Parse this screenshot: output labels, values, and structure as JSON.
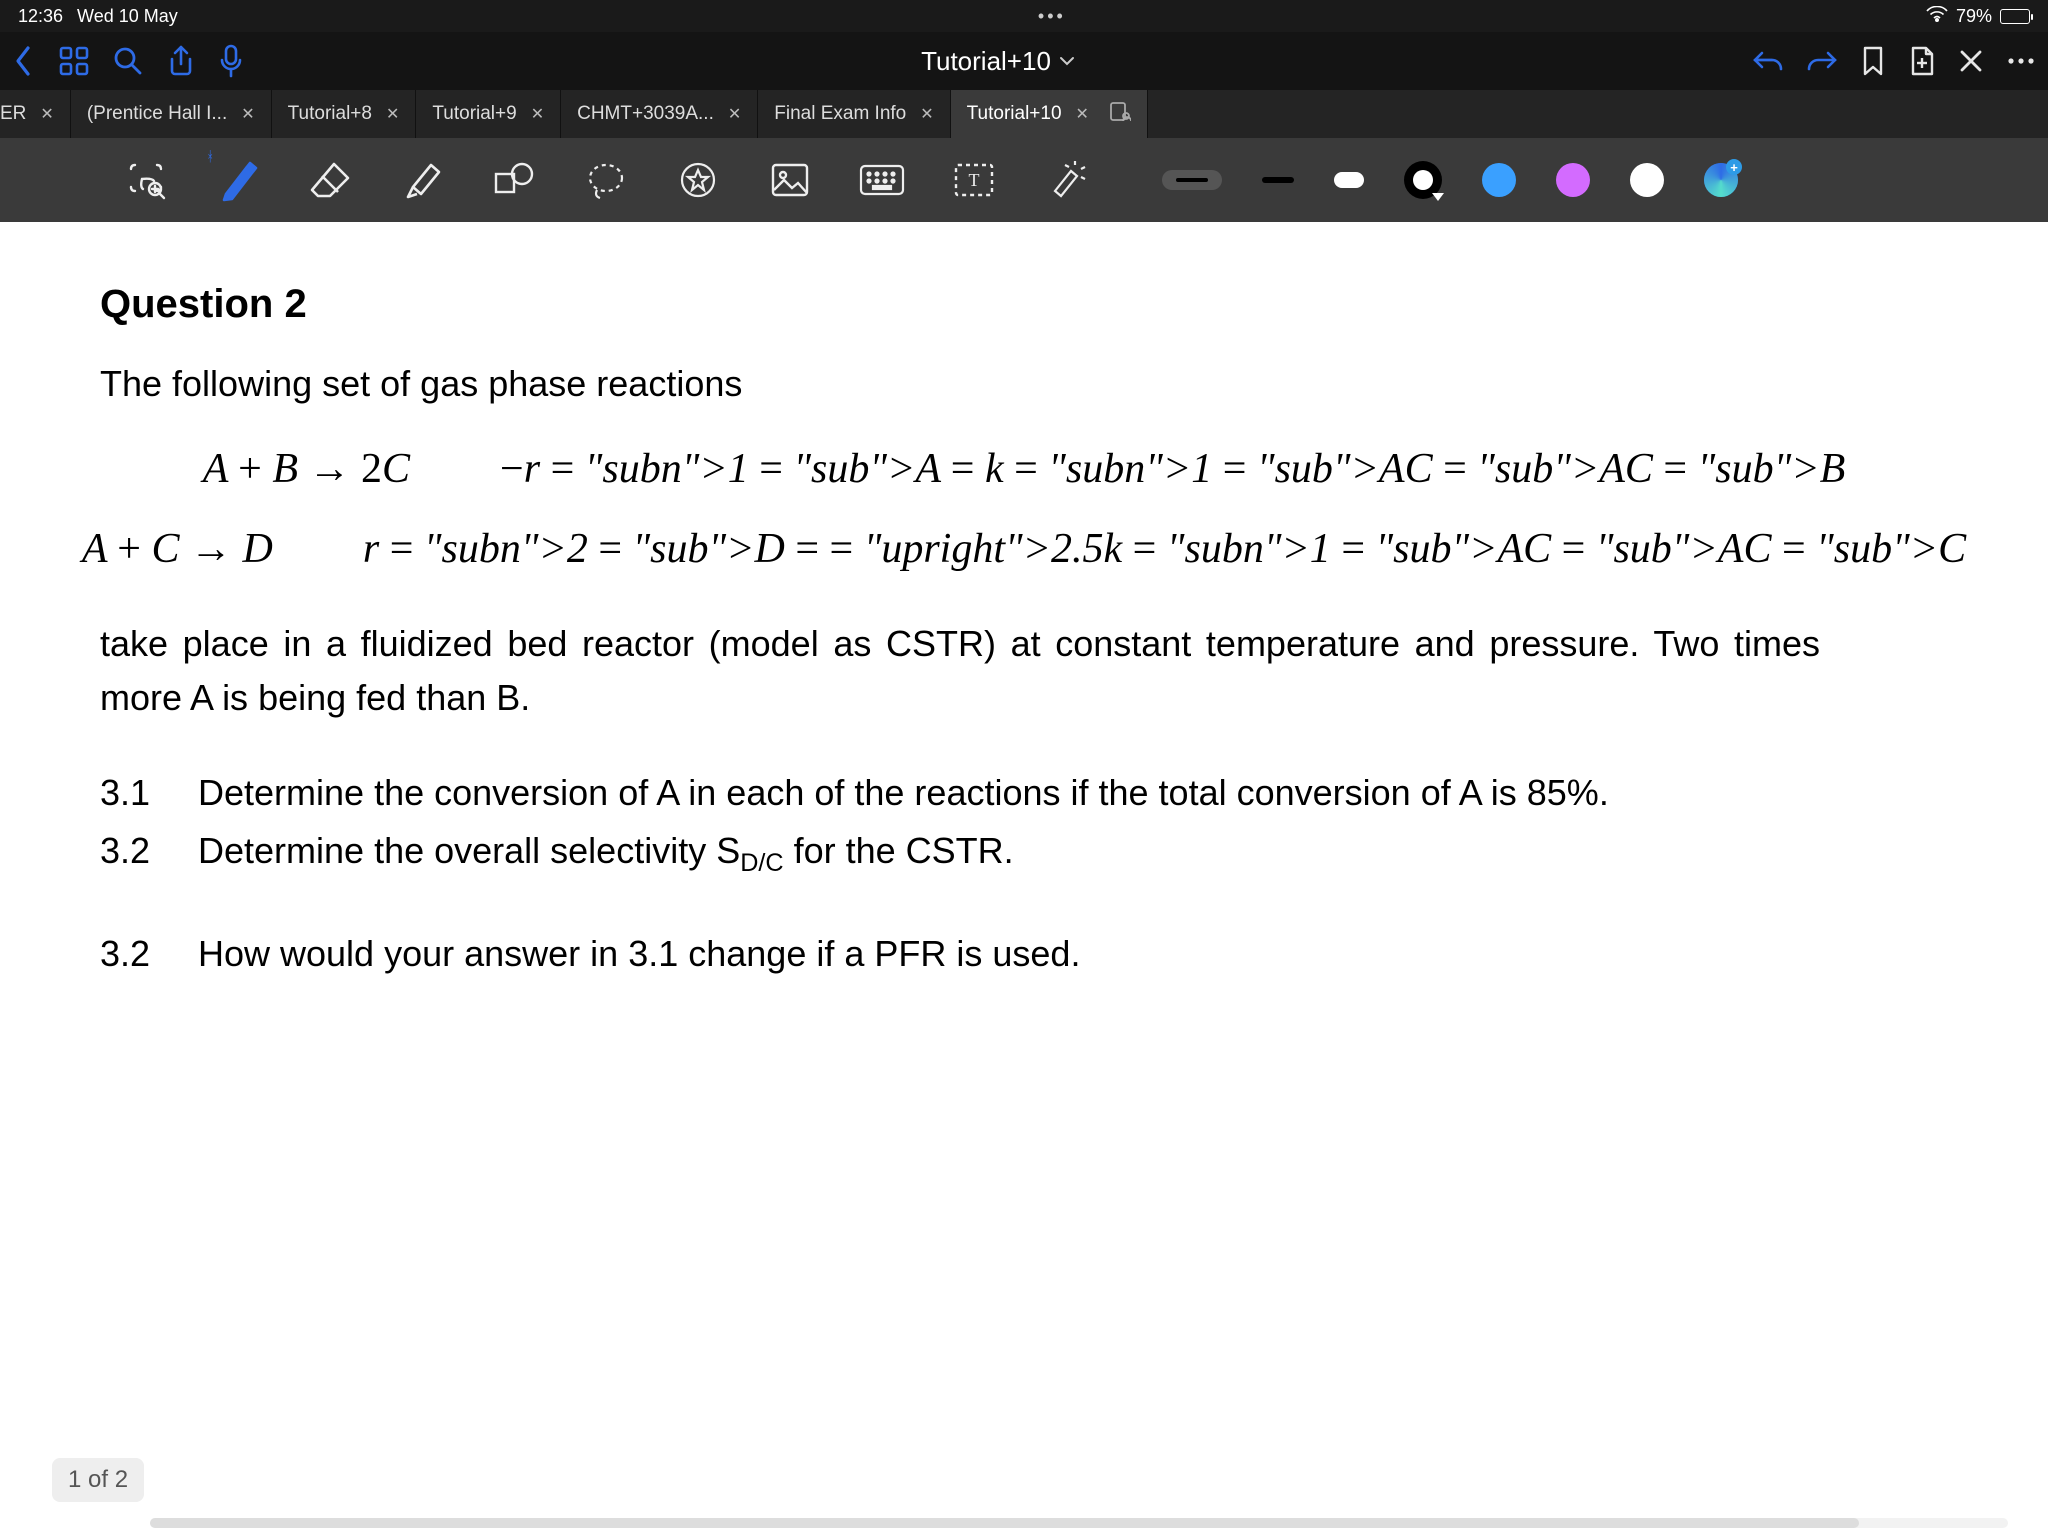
{
  "status": {
    "time": "12:36",
    "date": "Wed 10 May",
    "center_dots": "•••",
    "battery_pct": "79%",
    "battery_fill_pct": 79
  },
  "topbar": {
    "title": "Tutorial+10"
  },
  "tabs": [
    {
      "label": "ER",
      "partial_left": true,
      "closable": true
    },
    {
      "label": "(Prentice Hall I...",
      "closable": true,
      "truncated": true
    },
    {
      "label": "Tutorial+8",
      "closable": true
    },
    {
      "label": "Tutorial+9",
      "closable": true
    },
    {
      "label": "CHMT+3039A...",
      "closable": true
    },
    {
      "label": "Final Exam Info",
      "closable": true
    },
    {
      "label": "Tutorial+10",
      "closable": true,
      "active": true,
      "collab": true
    }
  ],
  "toolbar": {
    "colors": {
      "selected": "#000000",
      "swatches": [
        "#3aa0ff",
        "#d36bff",
        "#ffffff"
      ]
    }
  },
  "document": {
    "question_title": "Question 2",
    "intro": "The following set of gas phase reactions",
    "equations": [
      {
        "lhs": "A + B → 2C",
        "rhs_html": "−r<sub>1A</sub> = k<sub>1A</sub>C<sub>A</sub>C<sub>B</sub>"
      },
      {
        "lhs": "A + C → D",
        "rhs_html": "r<sub>2D</sub> = 2.5k<sub>1A</sub>C<sub>A</sub>C<sub>C</sub>"
      }
    ],
    "paragraph": "take place in a fluidized bed reactor (model as CSTR) at constant temperature and pressure.  Two times more A is being fed than B.",
    "items": [
      {
        "num": "3.1",
        "text": "Determine the conversion of A in each of the reactions if the total conversion of A is 85%."
      },
      {
        "num": "3.2",
        "text_html": "Determine the overall selectivity S<span class='sc'>D/C</span> for the CSTR."
      },
      {
        "num": "3.2",
        "text": "How would your answer in 3.1 change if a PFR is used.",
        "spaced": true
      }
    ],
    "page_indicator": "1 of 2",
    "hscroll_thumb_pct": 92
  }
}
